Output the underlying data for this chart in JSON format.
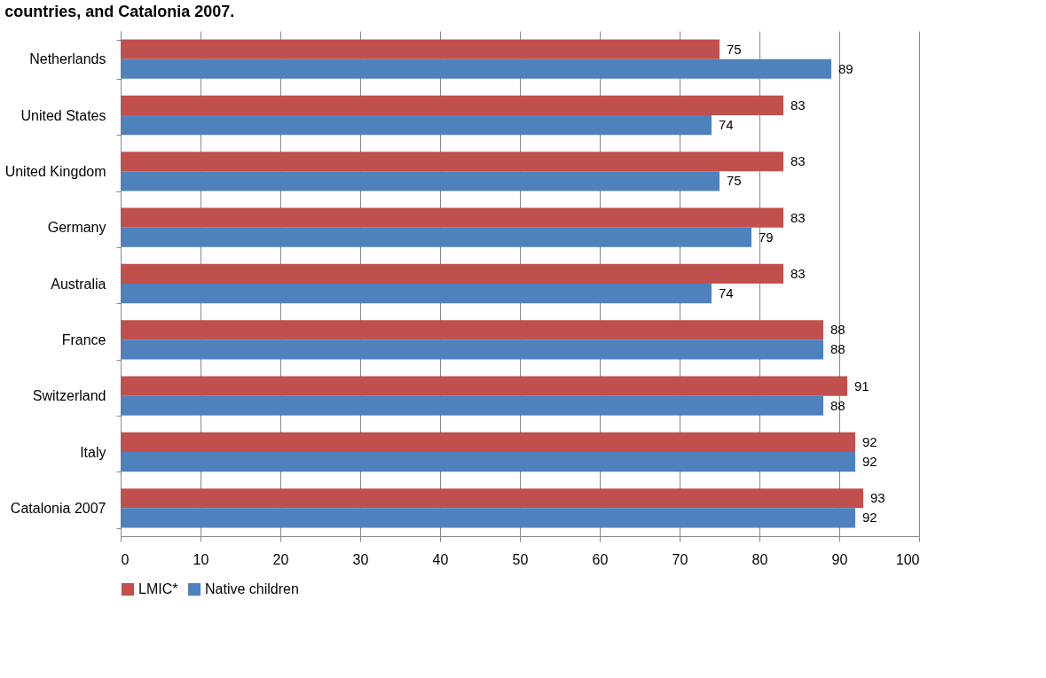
{
  "chart_data": {
    "type": "bar",
    "orientation": "horizontal",
    "title": "countries, and Catalonia 2007.",
    "categories": [
      "Netherlands",
      "United States",
      "United Kingdom",
      "Germany",
      "Australia",
      "France",
      "Switzerland",
      "Italy",
      "Catalonia 2007"
    ],
    "series": [
      {
        "name": "LMIC*",
        "color": "#c0504d",
        "values": [
          75,
          83,
          83,
          83,
          83,
          88,
          91,
          92,
          93
        ]
      },
      {
        "name": "Native children",
        "color": "#4f81bd",
        "values": [
          89,
          74,
          75,
          79,
          74,
          88,
          88,
          92,
          92
        ]
      }
    ],
    "xlim": [
      0,
      100
    ],
    "xticks": [
      0,
      10,
      20,
      30,
      40,
      50,
      60,
      70,
      80,
      90,
      100
    ],
    "grid": "x",
    "legend": "bottom",
    "data_labels": true
  }
}
